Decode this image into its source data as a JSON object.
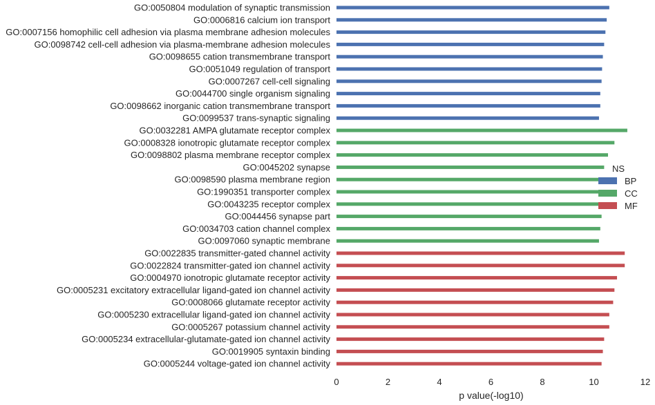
{
  "chart_data": {
    "type": "bar",
    "orientation": "horizontal",
    "xlabel": "p value(-log10)",
    "ylabel": "",
    "xlim": [
      0,
      12
    ],
    "xticks": [
      0,
      2,
      4,
      6,
      8,
      10,
      12
    ],
    "grid": false,
    "legend": {
      "title": "NS",
      "placement": "center-right",
      "entries": [
        {
          "name": "BP",
          "color": "#4c72b0"
        },
        {
          "name": "CC",
          "color": "#55a868"
        },
        {
          "name": "MF",
          "color": "#c44e52"
        }
      ]
    },
    "bars": [
      {
        "label": "GO:0050804 modulation of synaptic transmission",
        "value": 10.6,
        "group": "BP"
      },
      {
        "label": "GO:0006816 calcium ion transport",
        "value": 10.5,
        "group": "BP"
      },
      {
        "label": "GO:0007156 homophilic cell adhesion via plasma membrane adhesion molecules",
        "value": 10.45,
        "group": "BP"
      },
      {
        "label": "GO:0098742 cell-cell adhesion via plasma-membrane adhesion molecules",
        "value": 10.4,
        "group": "BP"
      },
      {
        "label": "GO:0098655 cation transmembrane transport",
        "value": 10.35,
        "group": "BP"
      },
      {
        "label": "GO:0051049 regulation of transport",
        "value": 10.32,
        "group": "BP"
      },
      {
        "label": "GO:0007267 cell-cell signaling",
        "value": 10.3,
        "group": "BP"
      },
      {
        "label": "GO:0044700 single organism signaling",
        "value": 10.25,
        "group": "BP"
      },
      {
        "label": "GO:0098662 inorganic cation transmembrane transport",
        "value": 10.25,
        "group": "BP"
      },
      {
        "label": "GO:0099537 trans-synaptic signaling",
        "value": 10.2,
        "group": "BP"
      },
      {
        "label": "GO:0032281 AMPA glutamate receptor complex",
        "value": 11.3,
        "group": "CC"
      },
      {
        "label": "GO:0008328 ionotropic glutamate receptor complex",
        "value": 10.8,
        "group": "CC"
      },
      {
        "label": "GO:0098802 plasma membrane receptor complex",
        "value": 10.55,
        "group": "CC"
      },
      {
        "label": "GO:0045202 synapse",
        "value": 10.4,
        "group": "CC"
      },
      {
        "label": "GO:0098590 plasma membrane region",
        "value": 10.35,
        "group": "CC"
      },
      {
        "label": "GO:1990351 transporter complex",
        "value": 10.32,
        "group": "CC"
      },
      {
        "label": "GO:0043235 receptor complex",
        "value": 10.3,
        "group": "CC"
      },
      {
        "label": "GO:0044456 synapse part",
        "value": 10.3,
        "group": "CC"
      },
      {
        "label": "GO:0034703 cation channel complex",
        "value": 10.25,
        "group": "CC"
      },
      {
        "label": "GO:0097060 synaptic membrane",
        "value": 10.2,
        "group": "CC"
      },
      {
        "label": "GO:0022835 transmitter-gated channel activity",
        "value": 11.2,
        "group": "MF"
      },
      {
        "label": "GO:0022824 transmitter-gated ion channel activity",
        "value": 11.2,
        "group": "MF"
      },
      {
        "label": "GO:0004970 ionotropic glutamate receptor activity",
        "value": 10.9,
        "group": "MF"
      },
      {
        "label": "GO:0005231 excitatory extracellular ligand-gated ion channel activity",
        "value": 10.8,
        "group": "MF"
      },
      {
        "label": "GO:0008066 glutamate receptor activity",
        "value": 10.75,
        "group": "MF"
      },
      {
        "label": "GO:0005230 extracellular ligand-gated ion channel activity",
        "value": 10.6,
        "group": "MF"
      },
      {
        "label": "GO:0005267 potassium channel activity",
        "value": 10.6,
        "group": "MF"
      },
      {
        "label": "GO:0005234 extracellular-glutamate-gated ion channel activity",
        "value": 10.4,
        "group": "MF"
      },
      {
        "label": "GO:0019905 syntaxin binding",
        "value": 10.35,
        "group": "MF"
      },
      {
        "label": "GO:0005244 voltage-gated ion channel activity",
        "value": 10.3,
        "group": "MF"
      }
    ]
  }
}
